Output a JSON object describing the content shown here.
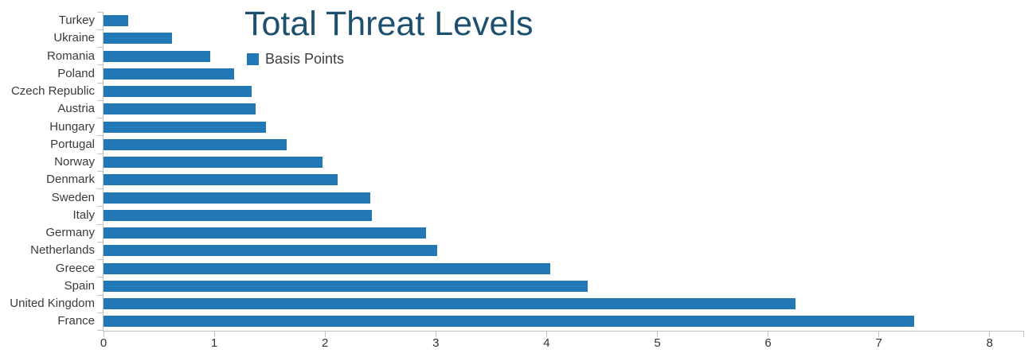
{
  "chart_data": {
    "type": "bar",
    "orientation": "horizontal",
    "title": "Total Threat Levels",
    "series": [
      {
        "name": "Basis Points",
        "values": [
          0.22,
          0.62,
          0.96,
          1.18,
          1.34,
          1.37,
          1.47,
          1.65,
          1.98,
          2.11,
          2.41,
          2.42,
          2.91,
          3.01,
          4.03,
          4.37,
          6.25,
          7.32
        ]
      }
    ],
    "categories": [
      "Turkey",
      "Ukraine",
      "Romania",
      "Poland",
      "Czech Republic",
      "Austria",
      "Hungary",
      "Portugal",
      "Norway",
      "Denmark",
      "Sweden",
      "Italy",
      "Germany",
      "Netherlands",
      "Greece",
      "Spain",
      "United Kingdom",
      "France"
    ],
    "x_ticks": [
      "0",
      "1",
      "2",
      "3",
      "4",
      "5",
      "6",
      "7",
      "8"
    ],
    "xlim": [
      0,
      8.3
    ],
    "xlabel": "",
    "ylabel": "",
    "grid": "off",
    "legend_position": "top-left-below-title",
    "colors": {
      "bar": "#2178B4",
      "title": "#1D4F6E",
      "axis_line": "#C2C2C2",
      "tick_text": "#333333",
      "category_text": "#3A3A3A",
      "legend_text": "#3D3D3D",
      "background": "#FFFFFF"
    }
  }
}
